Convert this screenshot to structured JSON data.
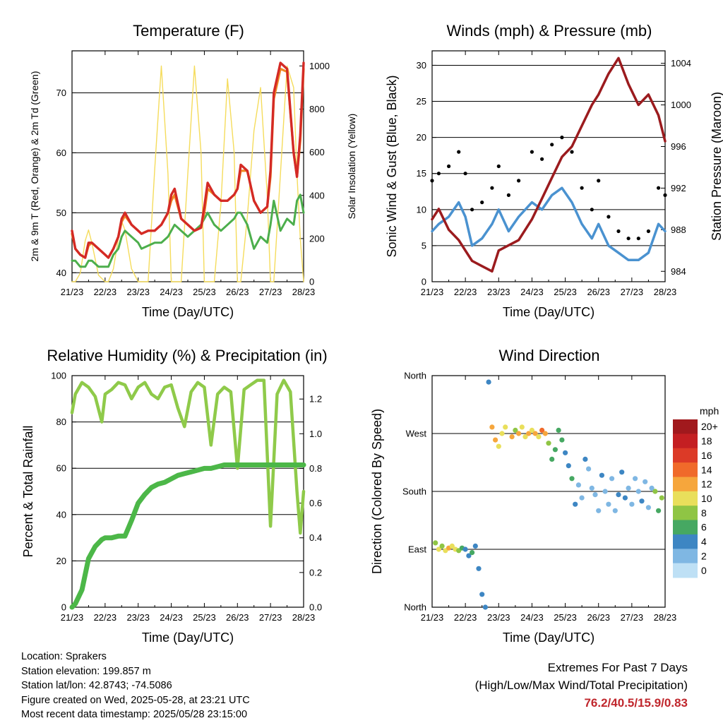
{
  "colors": {
    "t2m": "#d42a25",
    "t9m": "#f08a24",
    "dew": "#4cae4c",
    "solar": "#f5dc5c",
    "wind": "#4a92d0",
    "gust": "#000000",
    "pressure": "#9b1b1e",
    "rh": "#8fca4a",
    "precip": "#4cb748",
    "extremes": "#c0272d"
  },
  "x_ticks": [
    "21/23",
    "22/23",
    "23/23",
    "24/23",
    "25/23",
    "26/23",
    "27/23",
    "28/23"
  ],
  "chart_data": [
    {
      "type": "line",
      "title": "Temperature (F)",
      "xlabel": "Time (Day/UTC)",
      "ylabel": "2m & 9m T (Red, Orange) & 2m Td (Green)",
      "ylabel_right": "Solar Insolation (Yellow)",
      "ylim": [
        38.5,
        77
      ],
      "y_ticks": [
        "40",
        "50",
        "60",
        "70"
      ],
      "y2lim": [
        0,
        1070
      ],
      "y2_ticks": [
        "0",
        "200",
        "400",
        "600",
        "800",
        "1000"
      ],
      "grid": true,
      "x": [
        0,
        0.1,
        0.25,
        0.4,
        0.5,
        0.6,
        0.8,
        1.0,
        1.1,
        1.25,
        1.4,
        1.5,
        1.6,
        1.8,
        2.0,
        2.1,
        2.3,
        2.5,
        2.7,
        2.9,
        3.0,
        3.1,
        3.3,
        3.5,
        3.7,
        3.9,
        4.0,
        4.1,
        4.3,
        4.5,
        4.7,
        4.9,
        5.0,
        5.1,
        5.3,
        5.5,
        5.7,
        5.9,
        6.0,
        6.1,
        6.3,
        6.5,
        6.7,
        6.8,
        6.9,
        7.0
      ],
      "series": [
        {
          "values": [
            47,
            44,
            43,
            42.5,
            45,
            45,
            44,
            43,
            42.5,
            44,
            46,
            49,
            50,
            48,
            47,
            46.5,
            47,
            47,
            48,
            50,
            53,
            54,
            49,
            48,
            47,
            47.5,
            51,
            55,
            53,
            52,
            52,
            53,
            54,
            58,
            57,
            52,
            50,
            51,
            57,
            70,
            75,
            74,
            60,
            56,
            63,
            75
          ]
        },
        {
          "values": [
            46.5,
            44,
            43,
            42.5,
            44.5,
            45,
            44,
            43,
            42.5,
            44,
            46,
            48.5,
            49.5,
            48,
            47,
            46.5,
            47,
            47,
            48,
            50,
            52,
            53,
            49,
            48,
            47,
            47.5,
            50,
            54,
            53,
            52,
            52,
            53,
            54,
            57,
            57,
            52,
            50,
            51,
            56,
            69,
            74,
            73.5,
            60,
            56,
            62,
            74
          ]
        },
        {
          "values": [
            42,
            42,
            41,
            41,
            42,
            42,
            41,
            41,
            41,
            43,
            44,
            46,
            47,
            46,
            45,
            44,
            44.5,
            45,
            45,
            46,
            47,
            48,
            47,
            46,
            47,
            48,
            49,
            50,
            48,
            47,
            48,
            49,
            50,
            50,
            48,
            44,
            46,
            45,
            48,
            52,
            47,
            49,
            48,
            52,
            53,
            50
          ]
        },
        {
          "values": [
            0,
            0,
            40,
            190,
            240,
            180,
            30,
            0,
            0,
            60,
            200,
            280,
            240,
            60,
            0,
            0,
            0,
            520,
            1000,
            500,
            0,
            0,
            0,
            500,
            1000,
            600,
            0,
            0,
            0,
            360,
            940,
            600,
            0,
            0,
            300,
            700,
            900,
            400,
            0,
            0,
            500,
            1000,
            900,
            500,
            200,
            0
          ]
        }
      ]
    },
    {
      "type": "line",
      "title": "Winds (mph) & Pressure (mb)",
      "xlabel": "Time (Day/UTC)",
      "ylabel": "Sonic Wind & Gust (Blue, Black)",
      "ylabel_right": "Station Pressure (Maroon)",
      "ylim": [
        0,
        32
      ],
      "y_ticks": [
        "0",
        "5",
        "10",
        "15",
        "20",
        "25",
        "30"
      ],
      "y2lim": [
        983,
        1005.2
      ],
      "y2_ticks": [
        "984",
        "988",
        "992",
        "996",
        "1000",
        "1004"
      ],
      "grid": true,
      "x": [
        0,
        0.2,
        0.5,
        0.8,
        1.0,
        1.2,
        1.5,
        1.8,
        2.0,
        2.3,
        2.6,
        3.0,
        3.3,
        3.6,
        3.9,
        4.2,
        4.5,
        4.8,
        5.0,
        5.3,
        5.6,
        5.9,
        6.2,
        6.5,
        6.8,
        7.0
      ],
      "series": [
        {
          "values": [
            7,
            8,
            9,
            11,
            9,
            5,
            6,
            8,
            10,
            7,
            9,
            11,
            10,
            12,
            13,
            11,
            8,
            6,
            8,
            5,
            4,
            3,
            3,
            4,
            8,
            7
          ]
        },
        {
          "values": [
            14,
            15,
            16,
            18,
            15,
            10,
            11,
            13,
            16,
            12,
            14,
            18,
            17,
            19,
            20,
            18,
            13,
            10,
            14,
            9,
            7,
            6,
            6,
            7,
            13,
            12
          ]
        },
        {
          "values": [
            989,
            990,
            988,
            987,
            986,
            985,
            984.5,
            984,
            986,
            986.5,
            987,
            989,
            991,
            993,
            995,
            996,
            998,
            1000,
            1001,
            1003,
            1004.5,
            1002,
            1000,
            1001,
            999,
            996.5
          ]
        }
      ]
    },
    {
      "type": "line",
      "title": "Relative Humidity (%) & Precipitation (in)",
      "xlabel": "Time (Day/UTC)",
      "ylabel": "Percent & Total Rainfall",
      "ylim": [
        0,
        100
      ],
      "y_ticks": [
        "0",
        "20",
        "40",
        "60",
        "80",
        "100"
      ],
      "y2lim": [
        0,
        1.335
      ],
      "y2_ticks": [
        "0.0",
        "0.2",
        "0.4",
        "0.6",
        "0.8",
        "1.0",
        "1.2"
      ],
      "grid": true,
      "x": [
        0,
        0.1,
        0.3,
        0.5,
        0.7,
        0.9,
        1.0,
        1.2,
        1.4,
        1.6,
        1.8,
        2.0,
        2.2,
        2.4,
        2.6,
        2.8,
        3.0,
        3.2,
        3.4,
        3.6,
        3.8,
        4.0,
        4.2,
        4.4,
        4.6,
        4.8,
        5.0,
        5.2,
        5.4,
        5.6,
        5.8,
        6.0,
        6.2,
        6.4,
        6.6,
        6.8,
        6.9,
        7.0
      ],
      "series": [
        {
          "values": [
            84,
            92,
            97,
            95,
            91,
            80,
            92,
            94,
            97,
            96,
            90,
            95,
            97,
            92,
            90,
            95,
            96,
            86,
            78,
            93,
            97,
            95,
            70,
            92,
            95,
            93,
            60,
            94,
            96,
            98,
            98,
            35,
            92,
            98,
            93,
            50,
            32,
            50
          ]
        },
        {
          "values": [
            0,
            0.02,
            0.1,
            0.28,
            0.35,
            0.39,
            0.4,
            0.4,
            0.41,
            0.41,
            0.5,
            0.6,
            0.65,
            0.69,
            0.71,
            0.72,
            0.74,
            0.76,
            0.77,
            0.78,
            0.79,
            0.8,
            0.8,
            0.81,
            0.82,
            0.82,
            0.82,
            0.82,
            0.82,
            0.82,
            0.82,
            0.82,
            0.82,
            0.82,
            0.82,
            0.82,
            0.82,
            0.82
          ]
        }
      ]
    },
    {
      "type": "scatter",
      "title": "Wind Direction",
      "xlabel": "Time (Day/UTC)",
      "ylabel": "Direction (Colored By Speed)",
      "ylim": [
        0,
        360
      ],
      "y_ticks": [
        "North",
        "East",
        "South",
        "West",
        "North"
      ],
      "grid": true,
      "colorbar": {
        "title": "mph",
        "labels": [
          "20+",
          "18",
          "16",
          "14",
          "12",
          "10",
          "8",
          "6",
          "4",
          "2",
          "0"
        ],
        "colors": [
          "#a1191d",
          "#c41f22",
          "#dc3a27",
          "#f06a2a",
          "#f6a63c",
          "#e9df5b",
          "#8fc544",
          "#46a862",
          "#3d86c3",
          "#7fb7e3",
          "#bee0f5"
        ]
      },
      "x": [
        0.1,
        0.2,
        0.3,
        0.4,
        0.5,
        0.6,
        0.7,
        0.8,
        0.9,
        1.0,
        1.1,
        1.2,
        1.3,
        1.4,
        1.5,
        1.6,
        1.7,
        1.8,
        1.9,
        2.0,
        2.1,
        2.2,
        2.4,
        2.5,
        2.6,
        2.7,
        2.8,
        2.9,
        3.0,
        3.1,
        3.2,
        3.3,
        3.4,
        3.5,
        3.6,
        3.7,
        3.8,
        3.9,
        4.0,
        4.1,
        4.2,
        4.3,
        4.4,
        4.5,
        4.6,
        4.7,
        4.8,
        4.9,
        5.0,
        5.1,
        5.2,
        5.3,
        5.4,
        5.5,
        5.6,
        5.7,
        5.8,
        5.9,
        6.0,
        6.1,
        6.2,
        6.3,
        6.4,
        6.5,
        6.6,
        6.7,
        6.8,
        6.9
      ],
      "y": [
        100,
        90,
        95,
        88,
        92,
        95,
        90,
        88,
        92,
        90,
        80,
        85,
        95,
        60,
        20,
        0,
        350,
        280,
        260,
        250,
        270,
        280,
        265,
        275,
        270,
        280,
        265,
        270,
        275,
        270,
        265,
        275,
        270,
        255,
        230,
        245,
        275,
        260,
        240,
        220,
        200,
        160,
        190,
        170,
        230,
        215,
        185,
        175,
        150,
        205,
        180,
        160,
        200,
        150,
        175,
        210,
        170,
        185,
        160,
        200,
        180,
        165,
        195,
        155,
        185,
        180,
        150,
        170
      ],
      "values": [
        8,
        9,
        8,
        10,
        12,
        10,
        9,
        8,
        6,
        4,
        4,
        5,
        4,
        4,
        4,
        3,
        4,
        12,
        11,
        9,
        10,
        9,
        12,
        8,
        12,
        10,
        9,
        11,
        10,
        12,
        9,
        13,
        11,
        7,
        6,
        6,
        5,
        5,
        4,
        4,
        6,
        3,
        2,
        1,
        3,
        2,
        1,
        2,
        2,
        3,
        2,
        1,
        1,
        2,
        4,
        4,
        3,
        2,
        1,
        2,
        1,
        3,
        1,
        1,
        2,
        7,
        6,
        8
      ]
    }
  ],
  "info": {
    "location": "Location: Sprakers",
    "elevation": "Station elevation: 199.857 m",
    "latlon": "Station lat/lon: 42.8743; -74.5086",
    "created": "Figure created on Wed, 2025-05-28, at 23:21 UTC",
    "latest": "Most recent data timestamp: 2025/05/28 23:15:00"
  },
  "extremes": {
    "title": "Extremes For Past 7 Days",
    "subtitle": "(High/Low/Max Wind/Total Precipitation)",
    "values": "76.2/40.5/15.9/0.83"
  }
}
